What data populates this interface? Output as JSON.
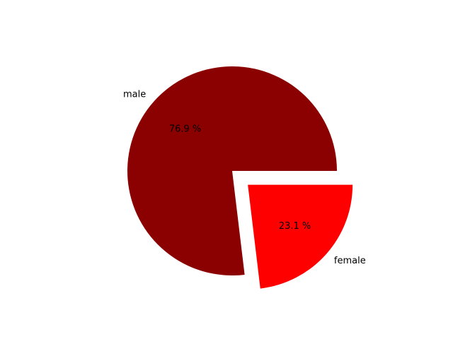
{
  "chart_data": {
    "type": "pie",
    "slices": [
      {
        "label": "male",
        "value": 76.9,
        "pct_label": "76.9 %",
        "color": "#8b0000",
        "exploded": false
      },
      {
        "label": "female",
        "value": 23.1,
        "pct_label": "23.1 %",
        "color": "#ff0000",
        "exploded": true
      }
    ],
    "start_angle_deg": 0,
    "direction": "counterclockwise"
  }
}
